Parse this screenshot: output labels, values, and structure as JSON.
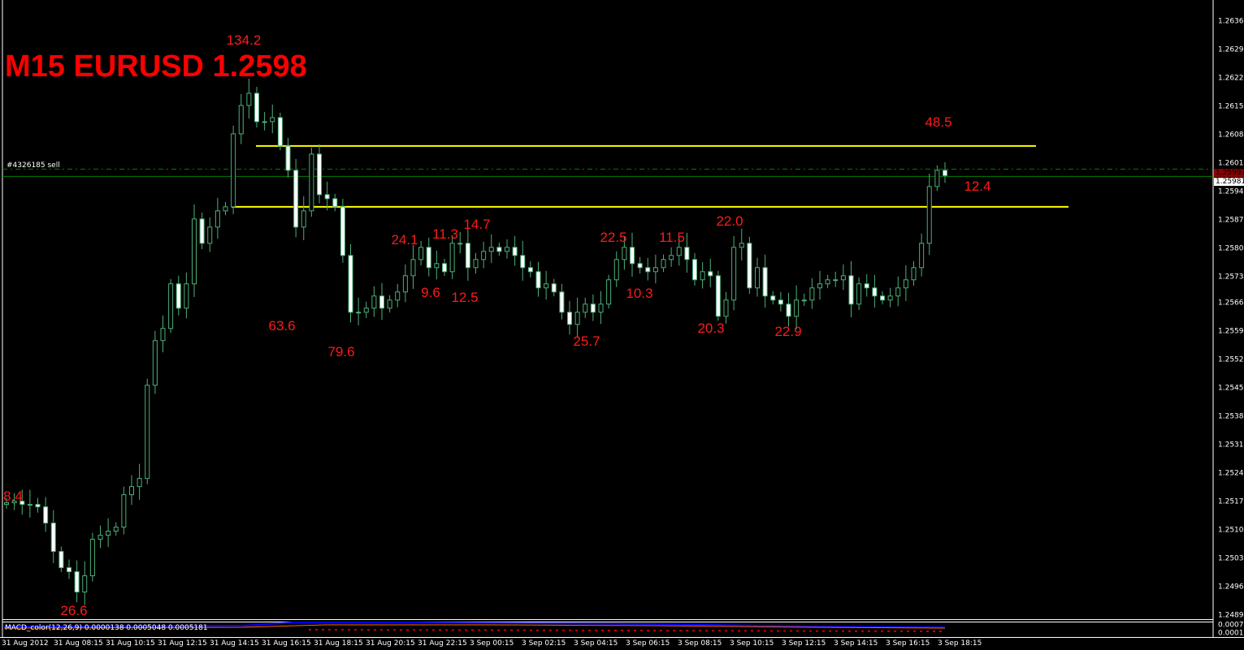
{
  "header": {
    "title": "M15 EURUSD 1.2598"
  },
  "order_label": "#4326185 sell",
  "indicator": {
    "label": "MACD_color(12,26,9) 0.0000138 0.0005048 0.0005181",
    "axis_top": "0.00078",
    "axis_bottom": "0.00010"
  },
  "colors": {
    "background": "#000000",
    "candle_outline": "#4caf78",
    "bull_fill": "#000000",
    "bear_fill": "#ffffff",
    "level_line": "#ffff00",
    "bid_line": "#008000",
    "annotation": "#ff1a1a",
    "ask_box": "#8b0000"
  },
  "price_boxes": {
    "ask": "1.25997",
    "bid": "1.25981"
  },
  "chart_data": {
    "type": "candlestick",
    "symbol": "EURUSD",
    "timeframe": "M15",
    "ylim": [
      1.2487,
      1.2638
    ],
    "y_ticks": [
      "1.26360",
      "1.26290",
      "1.26220",
      "1.26150",
      "1.26080",
      "1.26010",
      "1.25940",
      "1.25870",
      "1.25800",
      "1.25730",
      "1.25665",
      "1.25595",
      "1.25525",
      "1.25455",
      "1.25385",
      "1.25315",
      "1.25245",
      "1.25175",
      "1.25105",
      "1.25035",
      "1.24965",
      "1.24895"
    ],
    "x_ticks": [
      "31 Aug 2012",
      "31 Aug 08:15",
      "31 Aug 10:15",
      "31 Aug 12:15",
      "31 Aug 14:15",
      "31 Aug 16:15",
      "31 Aug 18:15",
      "31 Aug 20:15",
      "31 Aug 22:15",
      "3 Sep 00:15",
      "3 Sep 02:15",
      "3 Sep 04:15",
      "3 Sep 06:15",
      "3 Sep 08:15",
      "3 Sep 10:15",
      "3 Sep 12:15",
      "3 Sep 14:15",
      "3 Sep 16:15",
      "3 Sep 18:15"
    ],
    "closes": [
      1.25174,
      1.25178,
      1.2517,
      1.2517,
      1.25164,
      1.25124,
      1.25054,
      1.25014,
      1.25004,
      1.24954,
      1.24994,
      1.25084,
      1.25094,
      1.25104,
      1.25114,
      1.25194,
      1.25214,
      1.25234,
      1.25464,
      1.25574,
      1.25604,
      1.25714,
      1.25654,
      1.25714,
      1.25874,
      1.25814,
      1.25854,
      1.25894,
      1.25904,
      1.26084,
      1.26154,
      1.26184,
      1.26114,
      1.26114,
      1.26124,
      1.26054,
      1.25994,
      1.25854,
      1.25894,
      1.26034,
      1.25934,
      1.25924,
      1.25904,
      1.25784,
      1.25644,
      1.25644,
      1.25654,
      1.25684,
      1.25654,
      1.25674,
      1.25694,
      1.25734,
      1.25774,
      1.25804,
      1.25754,
      1.25764,
      1.25744,
      1.25814,
      1.25814,
      1.25754,
      1.25774,
      1.25794,
      1.25804,
      1.25794,
      1.25804,
      1.25784,
      1.25754,
      1.25744,
      1.25704,
      1.25714,
      1.25694,
      1.25644,
      1.25614,
      1.25644,
      1.25664,
      1.25644,
      1.25664,
      1.25724,
      1.25774,
      1.25804,
      1.25764,
      1.25754,
      1.25744,
      1.25754,
      1.25774,
      1.25784,
      1.25804,
      1.25774,
      1.25724,
      1.25744,
      1.25734,
      1.25634,
      1.25674,
      1.25804,
      1.25814,
      1.25704,
      1.25754,
      1.25684,
      1.25674,
      1.25664,
      1.25634,
      1.25674,
      1.25674,
      1.25704,
      1.25714,
      1.25724,
      1.25724,
      1.25734,
      1.25664,
      1.25714,
      1.25704,
      1.25684,
      1.25674,
      1.25684,
      1.25704,
      1.25724,
      1.25754,
      1.25814,
      1.25954,
      1.25994,
      1.25981
    ],
    "levels": [
      1.26054,
      1.25904
    ],
    "ask": 1.25997,
    "bid": 1.25981,
    "annotations": [
      "134.2",
      "8.4",
      "26.6",
      "63.6",
      "79.6",
      "24.1",
      "11.3",
      "14.7",
      "9.6",
      "12.5",
      "22.5",
      "11.5",
      "22.0",
      "10.3",
      "25.7",
      "20.3",
      "22.9",
      "48.5",
      "12.4"
    ]
  }
}
